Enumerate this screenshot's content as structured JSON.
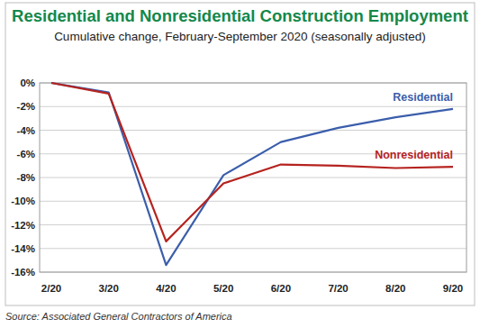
{
  "chart_data": {
    "type": "line",
    "title": "Residential and Nonresidential Construction Employment",
    "subtitle": "Cumulative change, February-September 2020 (seasonally adjusted)",
    "source": "Source: Associated General Contractors of America",
    "categories": [
      "2/20",
      "3/20",
      "4/20",
      "5/20",
      "6/20",
      "7/20",
      "8/20",
      "9/20"
    ],
    "series": [
      {
        "name": "Residential",
        "color": "#3b5eab",
        "values": [
          0,
          -0.8,
          -15.4,
          -7.8,
          -5.0,
          -3.8,
          -2.9,
          -2.2
        ]
      },
      {
        "name": "Nonresidential",
        "color": "#b5231f",
        "values": [
          0,
          -0.9,
          -13.4,
          -8.5,
          -6.9,
          -7.0,
          -7.2,
          -7.1
        ]
      }
    ],
    "ylim": [
      -16,
      0
    ],
    "yticks": [
      {
        "value": 0,
        "label": "0%"
      },
      {
        "value": -2,
        "label": "-2%"
      },
      {
        "value": -4,
        "label": "-4%"
      },
      {
        "value": -6,
        "label": "-6%"
      },
      {
        "value": -8,
        "label": "-8%"
      },
      {
        "value": -10,
        "label": "-10%"
      },
      {
        "value": -12,
        "label": "-12%"
      },
      {
        "value": -14,
        "label": "-14%"
      },
      {
        "value": -16,
        "label": "-16%"
      }
    ],
    "grid": true
  }
}
